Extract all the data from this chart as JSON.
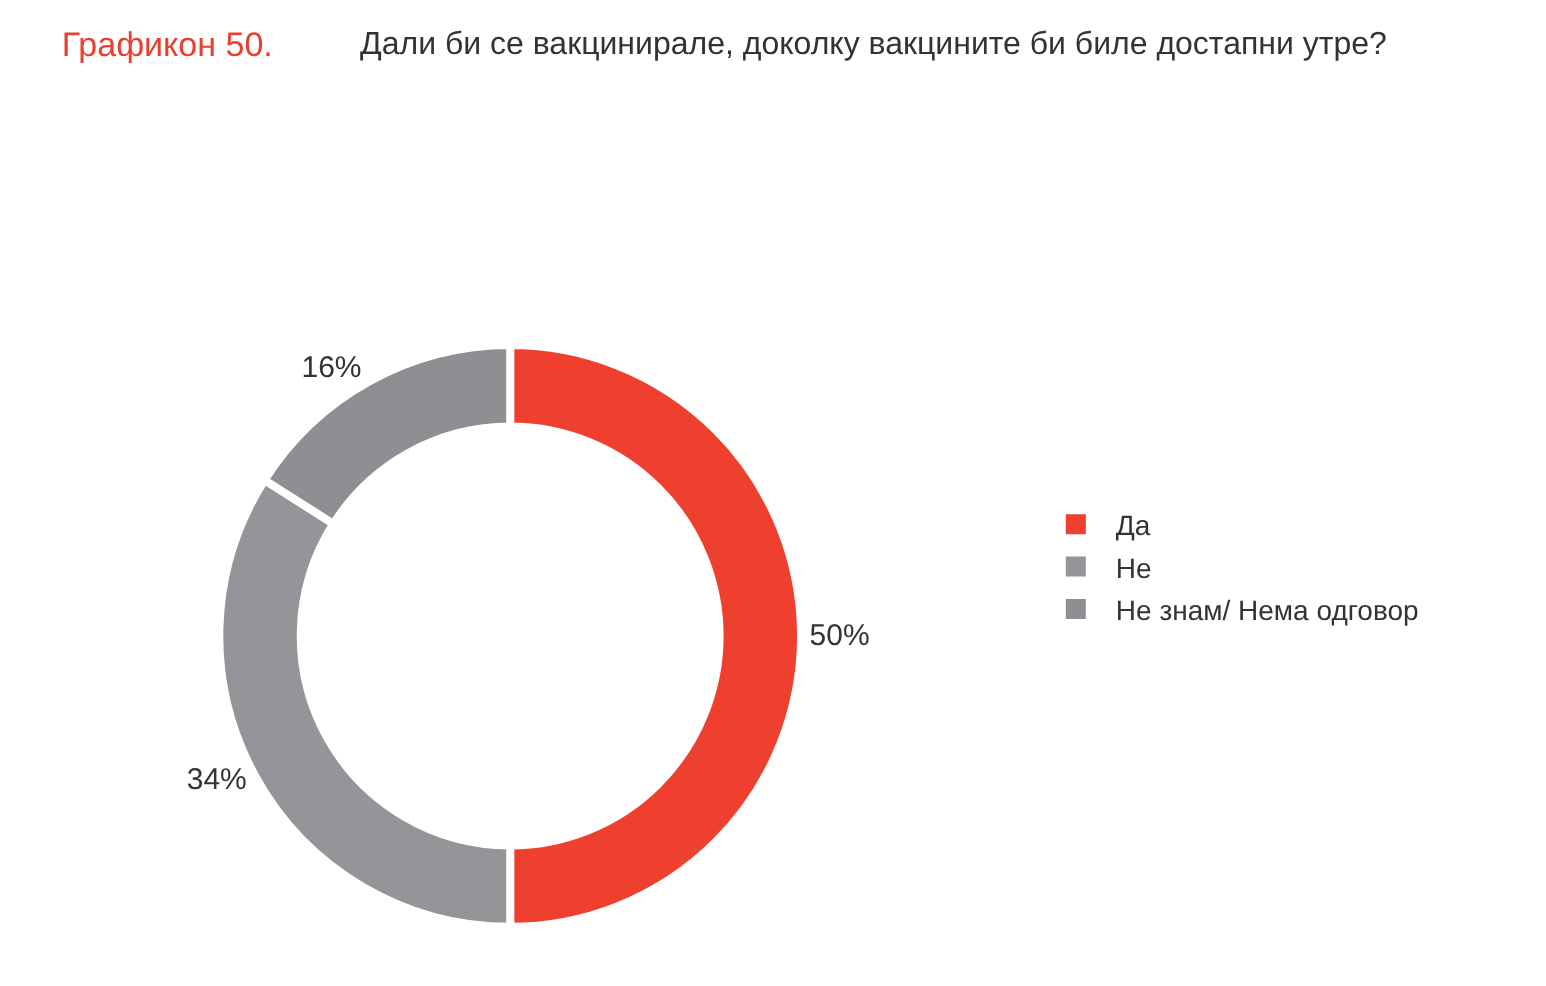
{
  "chart_data": {
    "type": "donut",
    "title": "Графикон 50.",
    "subtitle": "Дали би се вакцинирале, доколку вакцините би биле достапни утре?",
    "categories": [
      "Да",
      "Не",
      "Не знам/ Нема одговор"
    ],
    "values": [
      50,
      34,
      16
    ],
    "value_labels": [
      "50%",
      "34%",
      "16%"
    ],
    "colors": [
      "#ee3f2f",
      "#939598",
      "#8e8f92"
    ],
    "legend": "right"
  }
}
